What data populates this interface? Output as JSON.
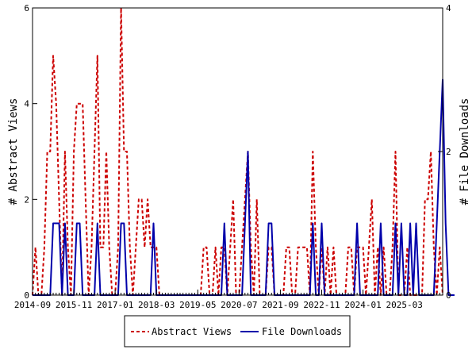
{
  "colors": {
    "abstract_views": "#cc0000",
    "file_downloads": "#0000aa",
    "axis": "#000000"
  },
  "chart_data": {
    "type": "line",
    "title": "",
    "xlabel": "",
    "ylabel_left": "# Abstract Views",
    "ylabel_right": "# File Downloads",
    "ylim_left": [
      0,
      6
    ],
    "ylim_right": [
      0,
      4
    ],
    "y_ticks_left": [
      "0",
      "2",
      "4",
      "6"
    ],
    "y_ticks_right": [
      "0",
      "2",
      "4"
    ],
    "x_ticks": [
      "2014-09",
      "2015-11",
      "2017-01",
      "2018-03",
      "2019-05",
      "2020-07",
      "2021-09",
      "2022-11",
      "2024-01",
      "2025-03"
    ],
    "x_start": "2014-09",
    "grid": false,
    "legend_position": "bottom",
    "series": [
      {
        "name": "Abstract Views",
        "axis": "left",
        "style": "dashed",
        "values": [
          0,
          1,
          0,
          0,
          1,
          3,
          3,
          5,
          4,
          2,
          0,
          3,
          1,
          0,
          3,
          4,
          4,
          4,
          2,
          0,
          1,
          3,
          5,
          1,
          1,
          3,
          1,
          0,
          0,
          1,
          6,
          3,
          3,
          1,
          0,
          1,
          2,
          2,
          1,
          2,
          1,
          1,
          1,
          0,
          0,
          0,
          0,
          0,
          0,
          0,
          0,
          0,
          0,
          0,
          0,
          0,
          0,
          0,
          1,
          1,
          0,
          0,
          1,
          0,
          1,
          1,
          0,
          1,
          2,
          0,
          0,
          1,
          2,
          3,
          1,
          0,
          2,
          0,
          0,
          0,
          1,
          1,
          0,
          0,
          0,
          0,
          1,
          1,
          0,
          0,
          1,
          1,
          1,
          1,
          0,
          3,
          1,
          0,
          1,
          0,
          1,
          0,
          1,
          0,
          0,
          0,
          0,
          1,
          1,
          0,
          1,
          1,
          1,
          0,
          1,
          2,
          0,
          1,
          0,
          1,
          0,
          0,
          1,
          3,
          0,
          0,
          0,
          1,
          0,
          0,
          0,
          0,
          0,
          2,
          2,
          3,
          1,
          0,
          1,
          0
        ]
      },
      {
        "name": "File Downloads",
        "axis": "right",
        "style": "solid",
        "values": [
          0,
          0,
          0,
          0,
          0,
          0,
          0,
          1,
          1,
          1,
          0,
          1,
          0,
          0,
          0,
          1,
          1,
          0,
          0,
          0,
          0,
          0,
          1,
          0,
          0,
          0,
          0,
          0,
          0,
          0,
          1,
          1,
          0,
          0,
          0,
          0,
          0,
          0,
          0,
          0,
          0,
          1,
          0,
          0,
          0,
          0,
          0,
          0,
          0,
          0,
          0,
          0,
          0,
          0,
          0,
          0,
          0,
          0,
          0,
          0,
          0,
          0,
          0,
          0,
          0,
          1,
          0,
          0,
          0,
          0,
          0,
          0,
          1,
          2,
          0,
          0,
          0,
          0,
          0,
          0,
          1,
          1,
          0,
          0,
          0,
          0,
          0,
          0,
          0,
          0,
          0,
          0,
          0,
          0,
          0,
          1,
          0,
          0,
          1,
          0,
          0,
          0,
          0,
          0,
          0,
          0,
          0,
          0,
          0,
          0,
          1,
          0,
          0,
          0,
          0,
          0,
          0,
          0,
          1,
          0,
          0,
          0,
          0,
          1,
          0,
          1,
          0,
          0,
          1,
          0,
          1,
          0,
          0,
          0,
          0,
          0,
          0,
          1,
          2,
          3,
          1,
          0,
          0,
          0
        ]
      }
    ]
  }
}
